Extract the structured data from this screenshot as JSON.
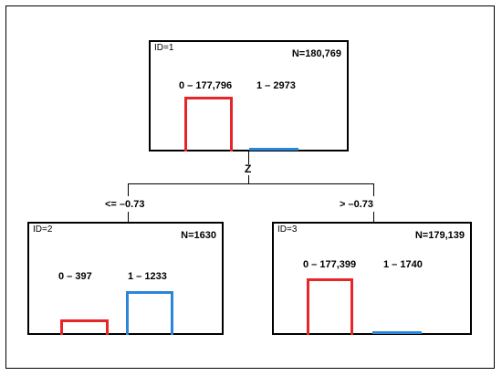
{
  "split": {
    "variable": "Z"
  },
  "colors": {
    "class0": "#e8262a",
    "class1": "#2b86d8",
    "line": "#000000"
  },
  "nodes": {
    "root": {
      "id": "ID=1",
      "n": "N=180,769",
      "class0": "0 – 177,796",
      "class1": "1 – 2973",
      "class0_fraction": 0.9836,
      "class1_fraction": 0.0164
    },
    "left": {
      "id": "ID=2",
      "n": "N=1630",
      "class0": "0 – 397",
      "class1": "1 – 1233",
      "class0_fraction": 0.2436,
      "class1_fraction": 0.7564
    },
    "right": {
      "id": "ID=3",
      "n": "N=179,139",
      "class0": "0 – 177,399",
      "class1": "1 – 1740",
      "class0_fraction": 0.9903,
      "class1_fraction": 0.0097
    }
  },
  "branches": {
    "left": "<= –0.73",
    "right": "> –0.73"
  }
}
